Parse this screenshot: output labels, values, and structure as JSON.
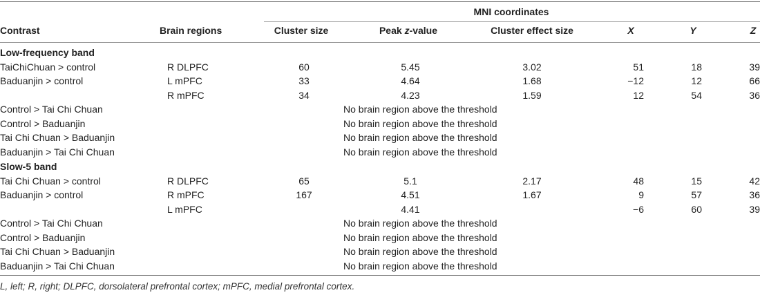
{
  "header": {
    "group": "MNI coordinates",
    "contrast": "Contrast",
    "brain_regions": "Brain regions",
    "cluster_size": "Cluster size",
    "peak_pre": "Peak ",
    "peak_z": "z",
    "peak_post": "-value",
    "effect_size": "Cluster effect size",
    "x": "X",
    "y": "Y",
    "z": "Z"
  },
  "sections": [
    {
      "title": "Low-frequency band",
      "rows": [
        {
          "contrast": "TaiChiChuan > control",
          "region": "R DLPFC",
          "size": "60",
          "peak": "5.45",
          "effect": "3.02",
          "x": "51",
          "y": "18",
          "z": "39"
        },
        {
          "contrast": "Baduanjin > control",
          "region": "L mPFC",
          "size": "33",
          "peak": "4.64",
          "effect": "1.68",
          "x": "−12",
          "y": "12",
          "z": "66"
        },
        {
          "contrast": "",
          "region": "R mPFC",
          "size": "34",
          "peak": "4.23",
          "effect": "1.59",
          "x": "12",
          "y": "54",
          "z": "36"
        },
        {
          "contrast": "Control > Tai Chi Chuan",
          "note": "No brain region above the threshold"
        },
        {
          "contrast": "Control > Baduanjin",
          "note": "No brain region above the threshold"
        },
        {
          "contrast": "Tai Chi Chuan > Baduanjin",
          "note": "No brain region above the threshold"
        },
        {
          "contrast": "Baduanjin > Tai Chi Chuan",
          "note": "No brain region above the threshold"
        }
      ]
    },
    {
      "title": "Slow-5 band",
      "rows": [
        {
          "contrast": "Tai Chi Chuan > control",
          "region": "R DLPFC",
          "size": "65",
          "peak": "5.1",
          "effect": "2.17",
          "x": "48",
          "y": "15",
          "z": "42"
        },
        {
          "contrast": "Baduanjin > control",
          "region": "R mPFC",
          "size": "167",
          "peak": "4.51",
          "effect": "1.67",
          "x": "9",
          "y": "57",
          "z": "36"
        },
        {
          "contrast": "",
          "region": "L mPFC",
          "size": "",
          "peak": "4.41",
          "effect": "",
          "x": "−6",
          "y": "60",
          "z": "39"
        },
        {
          "contrast": "Control > Tai Chi Chuan",
          "note": "No brain region above the threshold"
        },
        {
          "contrast": "Control > Baduanjin",
          "note": "No brain region above the threshold"
        },
        {
          "contrast": "Tai Chi Chuan > Baduanjin",
          "note": "No brain region above the threshold"
        },
        {
          "contrast": "Baduanjin > Tai Chi Chuan",
          "note": "No brain region above the threshold"
        }
      ]
    }
  ],
  "footnote": "L, left; R, right; DLPFC, dorsolateral prefrontal cortex; mPFC, medial prefrontal cortex."
}
